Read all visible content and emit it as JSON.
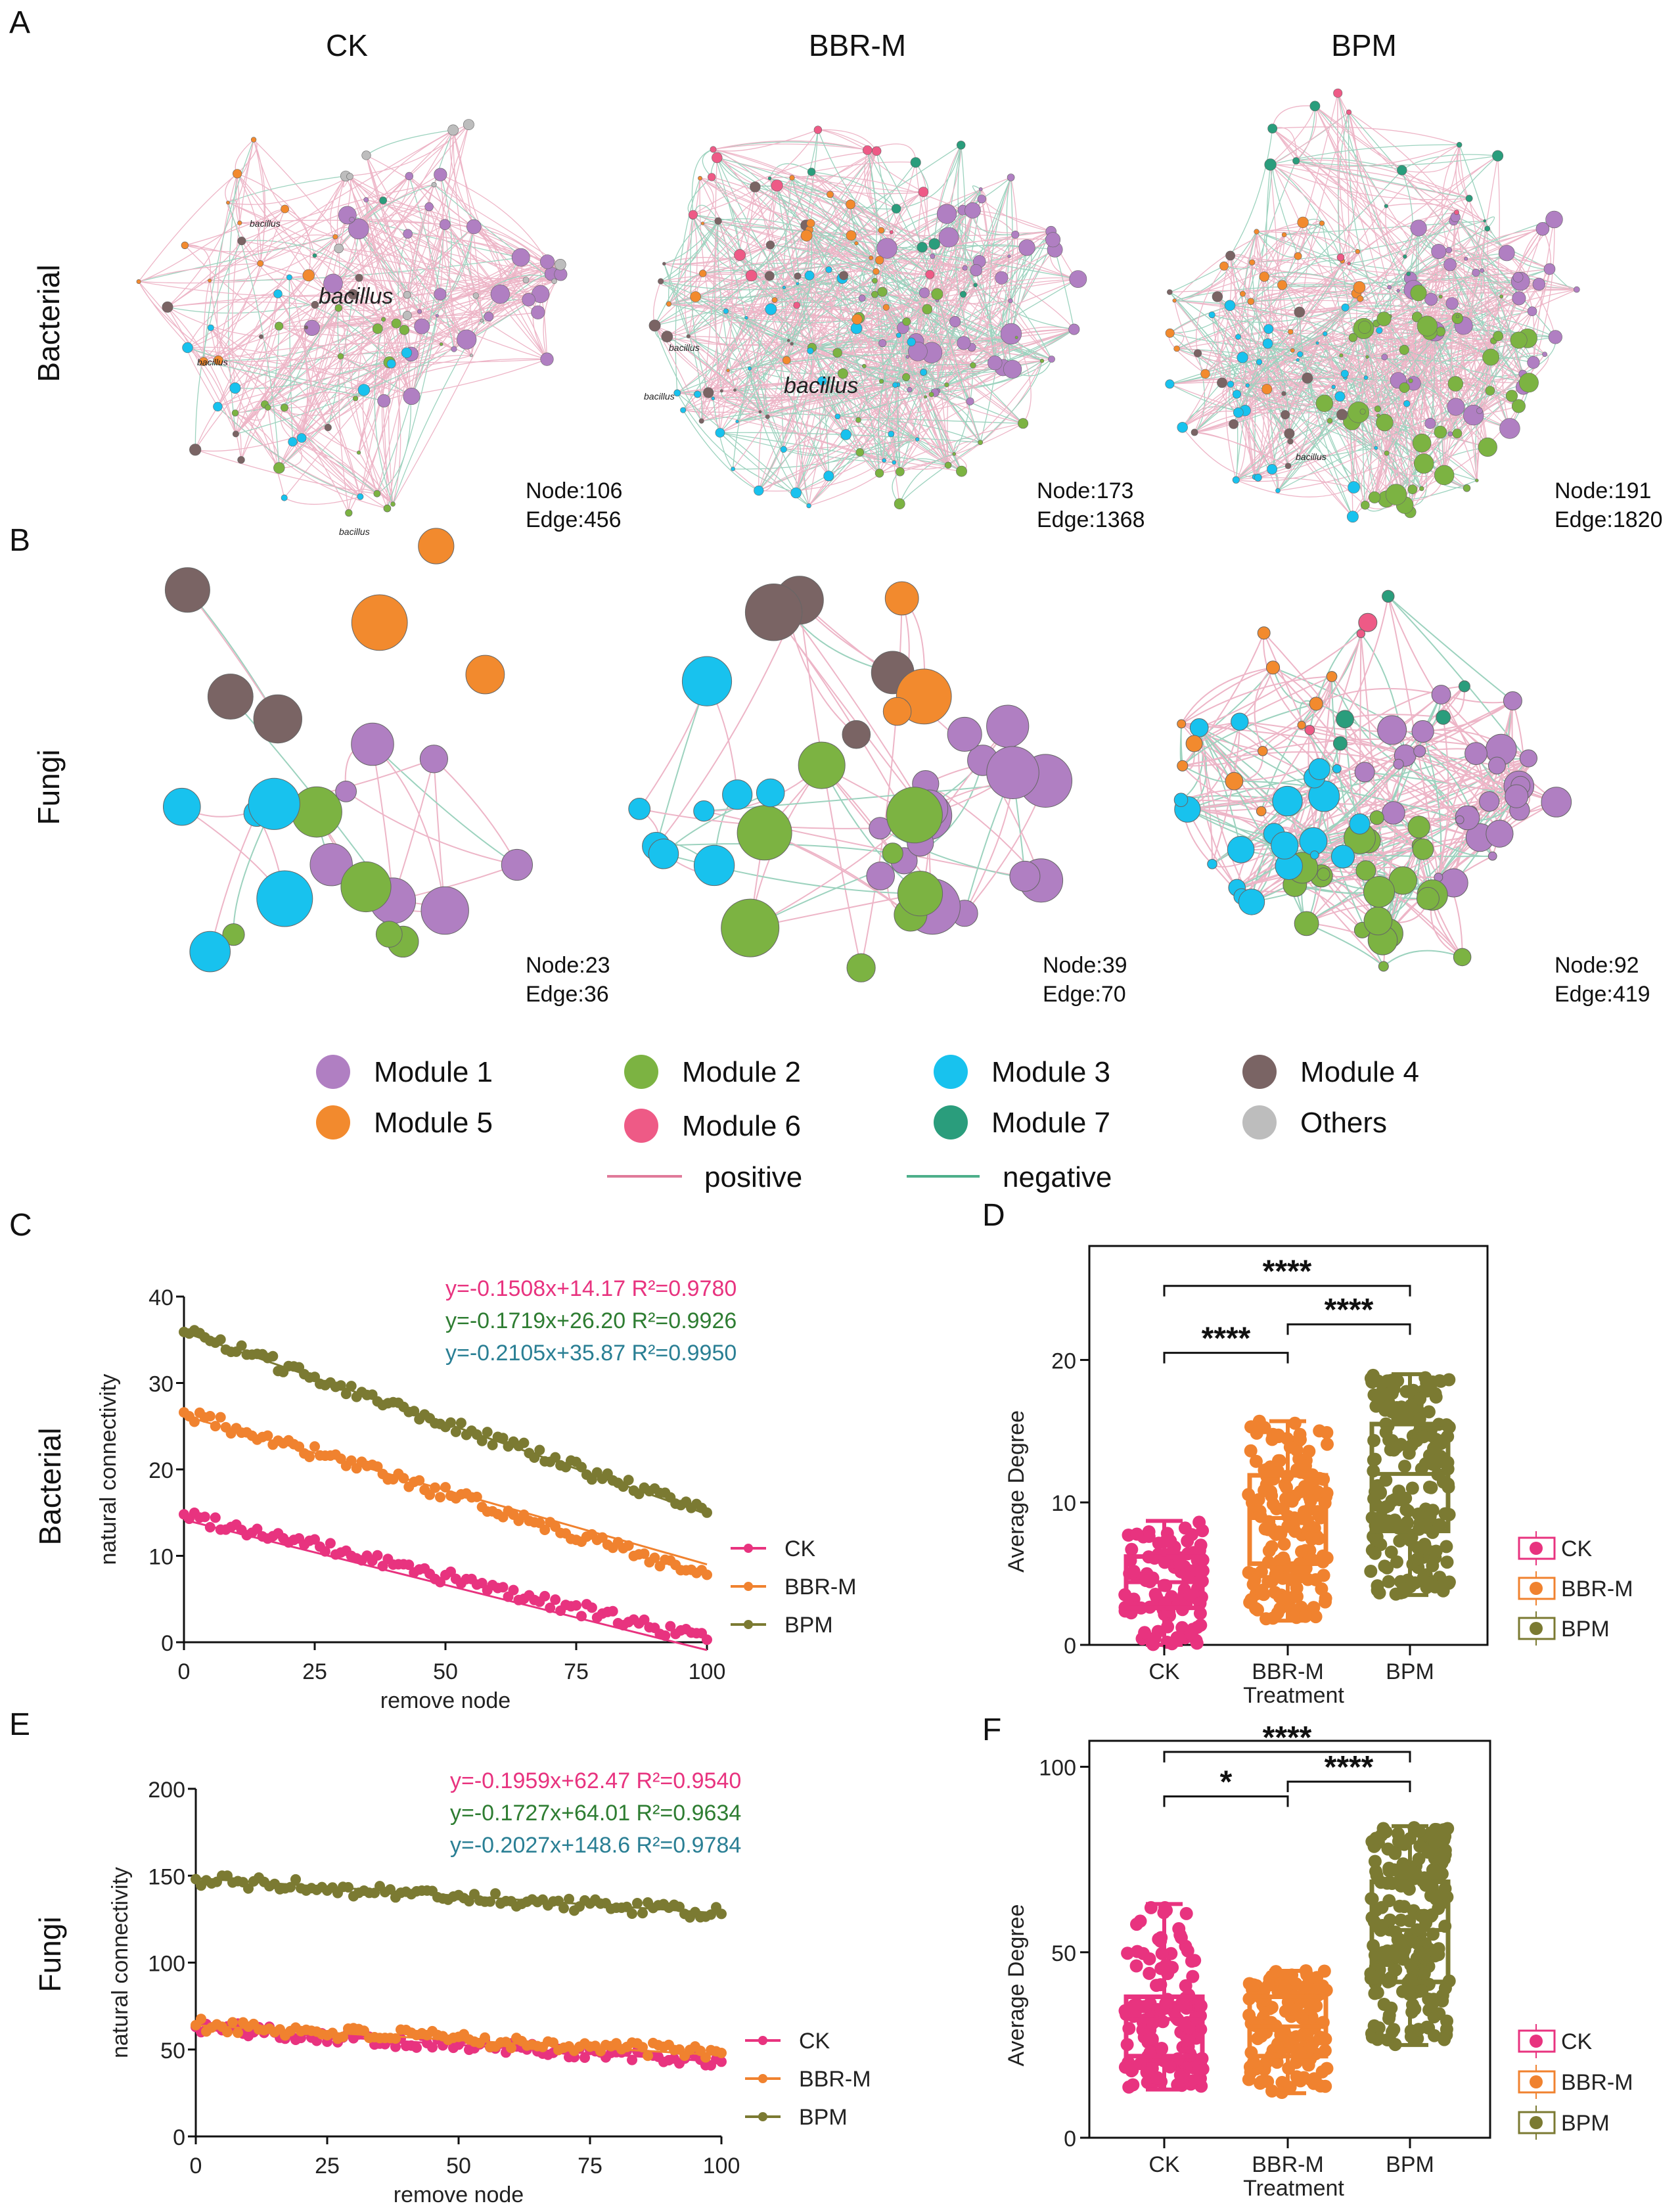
{
  "panels": {
    "A": "A",
    "B": "B",
    "C": "C",
    "D": "D",
    "E": "E",
    "F": "F"
  },
  "treatments": [
    "CK",
    "BBR-M",
    "BPM"
  ],
  "row_labels": {
    "bacterial": "Bacterial",
    "fungi": "Fungi"
  },
  "networks": {
    "bacterial": [
      {
        "name": "CK",
        "node_label": "Node:106",
        "edge_label": "Edge:456",
        "nodes": 106,
        "edges": 456,
        "negative_share": 0.15,
        "module_share": {
          "1": 0.3,
          "2": 0.2,
          "3": 0.12,
          "4": 0.1,
          "5": 0.12,
          "6": 0.0,
          "7": 0.02,
          "others": 0.14
        },
        "labels": [
          "bacillus",
          "bacillus",
          "bacillus",
          "bacillus"
        ]
      },
      {
        "name": "BBR-M",
        "node_label": "Node:173",
        "edge_label": "Edge:1368",
        "nodes": 173,
        "edges": 1368,
        "negative_share": 0.4,
        "module_share": {
          "1": 0.25,
          "2": 0.17,
          "3": 0.2,
          "4": 0.12,
          "5": 0.13,
          "6": 0.08,
          "7": 0.05,
          "others": 0.0
        },
        "labels": [
          "bacillus",
          "bacillus",
          "bacillus"
        ]
      },
      {
        "name": "BPM",
        "node_label": "Node:191",
        "edge_label": "Edge:1820",
        "nodes": 191,
        "edges": 1820,
        "negative_share": 0.35,
        "module_share": {
          "1": 0.22,
          "2": 0.3,
          "3": 0.18,
          "4": 0.08,
          "5": 0.12,
          "6": 0.03,
          "7": 0.07,
          "others": 0.0
        },
        "labels": [
          "bacillus"
        ]
      }
    ],
    "fungi": [
      {
        "name": "CK",
        "node_label": "Node:23",
        "edge_label": "Edge:36",
        "nodes": 23,
        "edges": 36,
        "negative_share": 0.2,
        "module_share": {
          "1": 0.3,
          "2": 0.22,
          "3": 0.22,
          "4": 0.13,
          "5": 0.13
        }
      },
      {
        "name": "BBR-M",
        "node_label": "Node:39",
        "edge_label": "Edge:70",
        "nodes": 39,
        "edges": 70,
        "negative_share": 0.25,
        "module_share": {
          "1": 0.4,
          "2": 0.2,
          "3": 0.2,
          "4": 0.13,
          "5": 0.07
        }
      },
      {
        "name": "BPM",
        "node_label": "Node:92",
        "edge_label": "Edge:419",
        "nodes": 92,
        "edges": 419,
        "negative_share": 0.35,
        "module_share": {
          "1": 0.3,
          "2": 0.25,
          "3": 0.25,
          "5": 0.12,
          "6": 0.03,
          "7": 0.05
        }
      }
    ]
  },
  "legend": {
    "modules": [
      {
        "label": "Module 1",
        "color": "#b07fc2"
      },
      {
        "label": "Module 2",
        "color": "#7cb342"
      },
      {
        "label": "Module 3",
        "color": "#18c2ee"
      },
      {
        "label": "Module 4",
        "color": "#7a6464"
      },
      {
        "label": "Module 5",
        "color": "#f28a2e"
      },
      {
        "label": "Module 6",
        "color": "#ee5a86"
      },
      {
        "label": "Module 7",
        "color": "#2a9d7c"
      },
      {
        "label": "Others",
        "color": "#bdbdbd"
      }
    ],
    "positive": {
      "label": "positive",
      "color": "#e07a9a"
    },
    "negative": {
      "label": "negative",
      "color": "#4daf8a"
    }
  },
  "series_colors": {
    "CK": "#e8337f",
    "BBR-M": "#f0822f",
    "BPM": "#7b7a32"
  },
  "chart_data": [
    {
      "id": "C",
      "type": "scatter",
      "xlabel": "remove node",
      "ylabel": "natural connectivity",
      "row": "Bacterial",
      "xlim": [
        0,
        100
      ],
      "ylim": [
        0,
        40
      ],
      "xticks": [
        "0",
        "25",
        "50",
        "75",
        "100"
      ],
      "yticks": [
        "0",
        "10",
        "20",
        "30",
        "40"
      ],
      "legend": [
        "CK",
        "BBR-M",
        "BPM"
      ],
      "equations": [
        {
          "text": "y=-0.1508x+14.17  R²=0.9780",
          "color": "#e8337f"
        },
        {
          "text": "y=-0.1719x+26.20  R²=0.9926",
          "color": "#2e7d32"
        },
        {
          "text": "y=-0.2105x+35.87  R²=0.9950",
          "color": "#2a7f94"
        }
      ],
      "series": [
        {
          "name": "CK",
          "slope": -0.1508,
          "intercept": 14.17,
          "start": 14.8,
          "end": 0.3
        },
        {
          "name": "BBR-M",
          "slope": -0.1719,
          "intercept": 26.2,
          "start": 26.6,
          "end": 7.8
        },
        {
          "name": "BPM",
          "slope": -0.2105,
          "intercept": 35.87,
          "start": 35.9,
          "end": 15.0
        }
      ]
    },
    {
      "id": "D",
      "type": "box",
      "xlabel": "Treatment",
      "ylabel": "Average Degree",
      "ylim": [
        0,
        28
      ],
      "yticks": [
        "0",
        "10",
        "20"
      ],
      "categories": [
        "CK",
        "BBR-M",
        "BPM"
      ],
      "boxes": [
        {
          "name": "CK",
          "min": 0,
          "q1": 2.6,
          "median": 4.4,
          "q3": 6.2,
          "max": 8.7,
          "n": 106
        },
        {
          "name": "BBR-M",
          "min": 1.7,
          "q1": 5.7,
          "median": 8.9,
          "q3": 11.9,
          "max": 15.7,
          "n": 173
        },
        {
          "name": "BPM",
          "min": 3.5,
          "q1": 8.0,
          "median": 12.0,
          "q3": 15.5,
          "max": 19.0,
          "n": 191
        }
      ],
      "significance": [
        {
          "from": "CK",
          "to": "BBR-M",
          "label": "****",
          "level": 20.5
        },
        {
          "from": "BBR-M",
          "to": "BPM",
          "label": "****",
          "level": 22.5
        },
        {
          "from": "CK",
          "to": "BPM",
          "label": "****",
          "level": 25.2
        }
      ],
      "legend": [
        "CK",
        "BBR-M",
        "BPM"
      ]
    },
    {
      "id": "E",
      "type": "scatter",
      "xlabel": "remove node",
      "ylabel": "natural connectivity",
      "row": "Fungi",
      "xlim": [
        0,
        100
      ],
      "ylim": [
        0,
        200
      ],
      "xticks": [
        "0",
        "25",
        "50",
        "75",
        "100"
      ],
      "yticks": [
        "0",
        "50",
        "100",
        "150",
        "200"
      ],
      "legend": [
        "CK",
        "BBR-M",
        "BPM"
      ],
      "equations": [
        {
          "text": "y=-0.1959x+62.47  R²=0.9540",
          "color": "#e8337f"
        },
        {
          "text": "y=-0.1727x+64.01  R²=0.9634",
          "color": "#2e7d32"
        },
        {
          "text": "y=-0.2027x+148.6  R²=0.9784",
          "color": "#2a7f94"
        }
      ],
      "series": [
        {
          "name": "CK",
          "slope": -0.1959,
          "intercept": 62.47,
          "start": 63,
          "end": 43
        },
        {
          "name": "BBR-M",
          "slope": -0.1727,
          "intercept": 64.01,
          "start": 64,
          "end": 48
        },
        {
          "name": "BPM",
          "slope": -0.2027,
          "intercept": 148.6,
          "start": 148,
          "end": 128
        }
      ]
    },
    {
      "id": "F",
      "type": "box",
      "xlabel": "Treatment",
      "ylabel": "Average Degree",
      "ylim": [
        0,
        107
      ],
      "yticks": [
        "0",
        "50",
        "100"
      ],
      "categories": [
        "CK",
        "BBR-M",
        "BPM"
      ],
      "boxes": [
        {
          "name": "CK",
          "min": 13,
          "q1": 22,
          "median": 32,
          "q3": 38,
          "max": 63,
          "n": 150
        },
        {
          "name": "BBR-M",
          "min": 12,
          "q1": 22,
          "median": 30,
          "q3": 38,
          "max": 45,
          "n": 150
        },
        {
          "name": "BPM",
          "min": 25,
          "q1": 42,
          "median": 56,
          "q3": 69,
          "max": 84,
          "n": 220
        }
      ],
      "significance": [
        {
          "from": "CK",
          "to": "BBR-M",
          "label": "*",
          "level": 92
        },
        {
          "from": "BBR-M",
          "to": "BPM",
          "label": "****",
          "level": 96
        },
        {
          "from": "CK",
          "to": "BPM",
          "label": "****",
          "level": 104
        }
      ],
      "legend": [
        "CK",
        "BBR-M",
        "BPM"
      ]
    }
  ]
}
